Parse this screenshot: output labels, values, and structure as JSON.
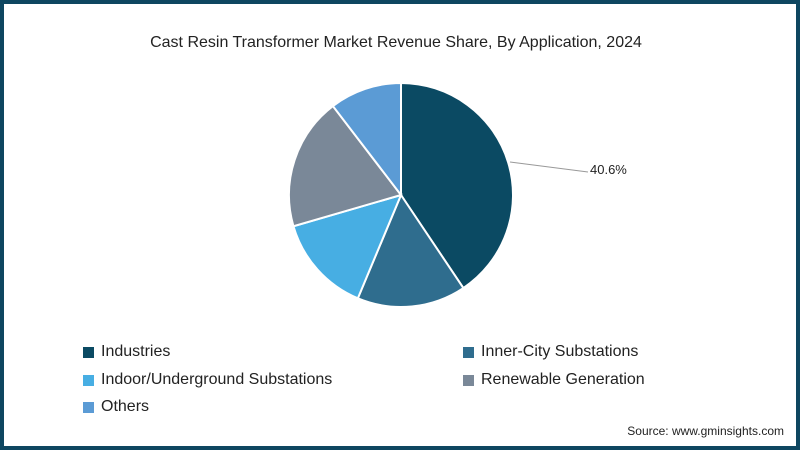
{
  "chart_data": {
    "type": "pie",
    "title": "Cast Resin Transformer Market Revenue Share, By Application, 2024",
    "categories": [
      "Industries",
      "Inner-City Substations",
      "Indoor/Underground Substations",
      "Renewable Generation",
      "Others"
    ],
    "values": [
      40.6,
      15.7,
      14.2,
      19.1,
      10.4
    ],
    "colors": [
      "#0b4a63",
      "#2f6d8e",
      "#47aee3",
      "#7a8898",
      "#5b9bd5"
    ],
    "annotations": [
      {
        "label": "40.6%",
        "category": "Industries"
      }
    ],
    "legend_position": "bottom"
  },
  "title": "Cast Resin Transformer Market Revenue Share, By Application, 2024",
  "annotation": "40.6%",
  "legend": [
    {
      "label": "Industries",
      "color": "#0b4a63"
    },
    {
      "label": "Inner-City Substations",
      "color": "#2f6d8e"
    },
    {
      "label": "Indoor/Underground Substations",
      "color": "#47aee3"
    },
    {
      "label": "Renewable Generation",
      "color": "#7a8898"
    },
    {
      "label": "Others",
      "color": "#5b9bd5"
    }
  ],
  "source": "Source: www.gminsights.com"
}
